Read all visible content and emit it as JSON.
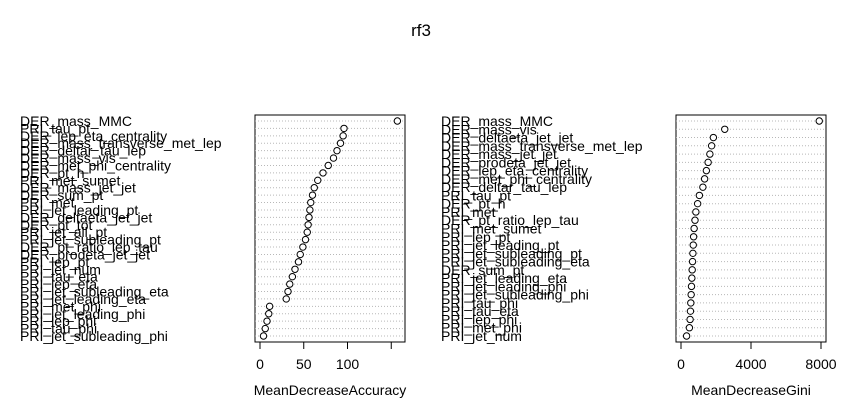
{
  "title": "rf3",
  "chart_data": [
    {
      "type": "scatter",
      "xlabel": "MeanDecreaseAccuracy",
      "xlim": [
        0,
        160
      ],
      "xticks": [
        0,
        50,
        100,
        150
      ],
      "xtick_labels": [
        "0",
        "50",
        "100",
        ""
      ],
      "grid": true,
      "labels": [
        "DER_mass_MMC",
        "PRI_tau_pt",
        "DER_lep_eta_centrality",
        "DER_mass_transverse_met_lep",
        "DER_deltar_tau_lep",
        "DER_mass_vis",
        "DER_met_phi_centrality",
        "DER_pt_h",
        "PRI_met_sumet",
        "DER_mass_jet_jet",
        "DER_sum_pt",
        "PRI_met",
        "PRI_jet_leading_pt",
        "DER_deltaeta_jet_jet",
        "DER_pt_tot",
        "PRI_jet_all_pt",
        "PRI_jet_subleading_pt",
        "DER_pt_ratio_lep_tau",
        "DER_prodeta_jet_jet",
        "PRI_lep_pt",
        "PRI_jet_num",
        "PRI_tau_eta",
        "PRI_lep_eta",
        "PRI_jet_subleading_eta",
        "PRI_jet_leading_eta",
        "PRI_met_phi",
        "PRI_jet_leading_phi",
        "PRI_lep_phi",
        "PRI_tau_phi",
        "PRI_jet_subleading_phi"
      ],
      "values": [
        157,
        96,
        95,
        92,
        88,
        84,
        78,
        72,
        66,
        62,
        60,
        58,
        57,
        56,
        55,
        54,
        52,
        49,
        46,
        44,
        40,
        37,
        34,
        32,
        30,
        11,
        10,
        8,
        6,
        4
      ]
    },
    {
      "type": "scatter",
      "xlabel": "MeanDecreaseGini",
      "xlim": [
        0,
        8000
      ],
      "xticks": [
        0,
        4000,
        8000
      ],
      "xtick_labels": [
        "0",
        "4000",
        "8000"
      ],
      "grid": true,
      "labels": [
        "DER_mass_MMC",
        "DER_mass_vis",
        "DER_deltaeta_jet_jet",
        "DER_mass_transverse_met_lep",
        "DER_mass_jet_jet",
        "DER_prodeta_jet_jet",
        "DER_lep_eta_centrality",
        "DER_met_phi_centrality",
        "DER_deltar_tau_lep",
        "PRI_tau_pt",
        "DER_pt_h",
        "PRI_met",
        "DER_pt_ratio_lep_tau",
        "PRI_met_sumet",
        "PRI_lep_pt",
        "PRI_jet_leading_pt",
        "PRI_jet_subleading_pt",
        "PRI_jet_subleading_eta",
        "DER_sum_pt",
        "PRI_jet_leading_eta",
        "PRI_jet_leading_phi",
        "PRI_jet_subleading_phi",
        "PRI_tau_phi",
        "PRI_tau_eta",
        "PRI_lep_phi",
        "PRI_met_phi",
        "PRI_jet_num"
      ],
      "values": [
        7900,
        2500,
        1850,
        1750,
        1650,
        1550,
        1450,
        1350,
        1250,
        1050,
        950,
        850,
        800,
        750,
        720,
        700,
        680,
        660,
        640,
        620,
        600,
        580,
        560,
        540,
        520,
        480,
        320
      ]
    }
  ]
}
